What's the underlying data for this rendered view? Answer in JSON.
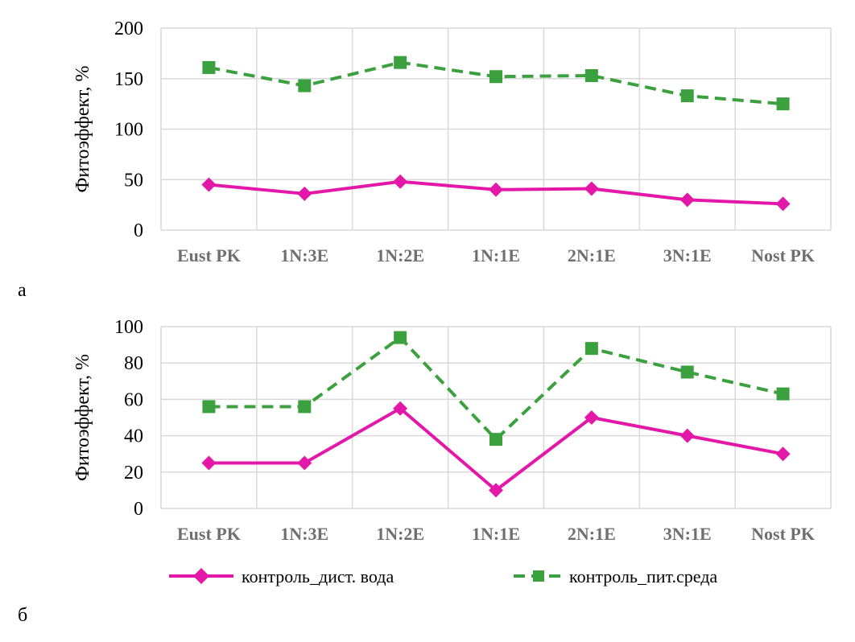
{
  "panel_labels": {
    "a": "а",
    "b": "б"
  },
  "colors": {
    "series1": "#e317a8",
    "series2": "#3ba13e",
    "grid": "#d9d9d9",
    "tick_text": "#6f6f6f"
  },
  "legend": {
    "series1_label": "контроль_дист. вода",
    "series1_marker": "diamond",
    "series2_label": "контроль_пит.среда",
    "series2_marker": "square"
  },
  "chart_data": [
    {
      "type": "line",
      "panel": "а",
      "categories": [
        "Eust PK",
        "1N:3E",
        "1N:2E",
        "1N:1E",
        "2N:1E",
        "3N:1E",
        "Nost PK"
      ],
      "ylabel": "Фитоэффект, %",
      "ylim": [
        0,
        200
      ],
      "yticks": [
        0,
        50,
        100,
        150,
        200
      ],
      "grid": true,
      "series": [
        {
          "name": "контроль_дист. вода",
          "style": "solid",
          "marker": "diamond",
          "values": [
            45,
            36,
            48,
            40,
            41,
            30,
            26
          ]
        },
        {
          "name": "контроль_пит.среда",
          "style": "dashed",
          "marker": "square",
          "values": [
            161,
            143,
            166,
            152,
            153,
            133,
            125
          ]
        }
      ]
    },
    {
      "type": "line",
      "panel": "б",
      "categories": [
        "Eust PK",
        "1N:3E",
        "1N:2E",
        "1N:1E",
        "2N:1E",
        "3N:1E",
        "Nost PK"
      ],
      "ylabel": "Фитоэффект, %",
      "ylim": [
        0,
        100
      ],
      "yticks": [
        0,
        20,
        40,
        60,
        80,
        100
      ],
      "grid": true,
      "legend_position": "bottom",
      "series": [
        {
          "name": "контроль_дист. вода",
          "style": "solid",
          "marker": "diamond",
          "values": [
            25,
            25,
            55,
            10,
            50,
            40,
            30
          ]
        },
        {
          "name": "контроль_пит.среда",
          "style": "dashed",
          "marker": "square",
          "values": [
            56,
            56,
            94,
            38,
            88,
            75,
            63
          ]
        }
      ]
    }
  ]
}
